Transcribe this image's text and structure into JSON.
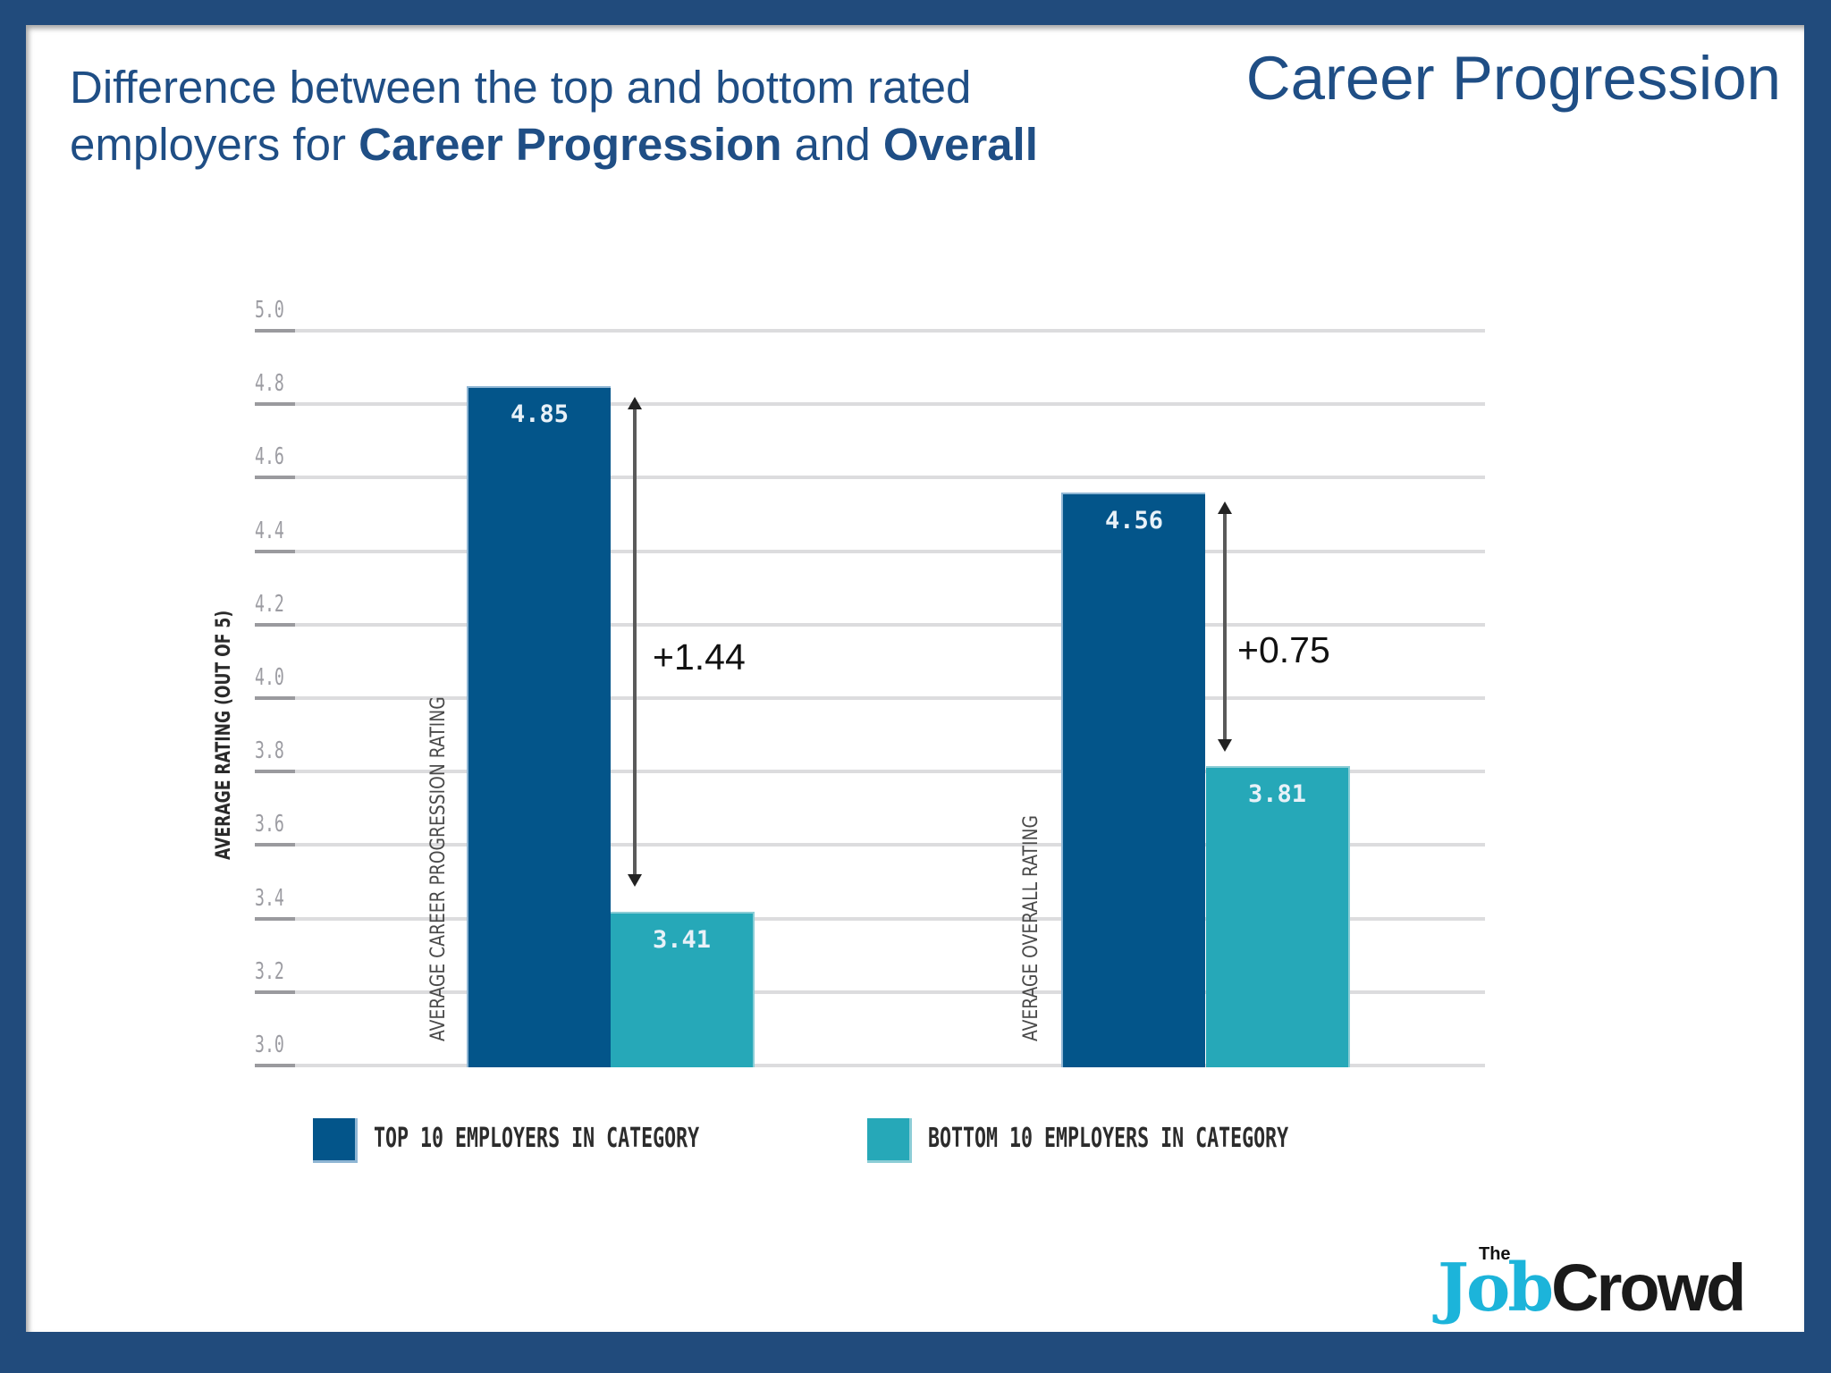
{
  "slide": {
    "corner_title": "Career Progression",
    "subtitle_line1": "Difference between the top and bottom rated",
    "subtitle_line2_prefix": "employers for ",
    "subtitle_bold1": "Career Progression",
    "subtitle_mid": " and ",
    "subtitle_bold2": "Overall"
  },
  "colors": {
    "border": "#214b7c",
    "title": "#1f4e85",
    "top_series": "#03558a",
    "bottom_series": "#26a8b8"
  },
  "chart_data": {
    "type": "bar",
    "title": "Difference between the top and bottom rated employers for Career Progression and Overall",
    "ylabel": "AVERAGE RATING (OUT OF 5)",
    "xlabel": "",
    "ylim": [
      3.0,
      5.0
    ],
    "yticks": [
      "5.0",
      "4.8",
      "4.6",
      "4.4",
      "4.2",
      "4.0",
      "3.8",
      "3.6",
      "3.4",
      "3.2",
      "3.0"
    ],
    "grid": true,
    "legend_position": "bottom",
    "categories": [
      "AVERAGE CAREER PROGRESSION RATING",
      "AVERAGE OVERALL RATING"
    ],
    "series": [
      {
        "name": "TOP 10 EMPLOYERS IN CATEGORY",
        "values": [
          4.85,
          4.56
        ],
        "labels": [
          "4.85",
          "4.56"
        ]
      },
      {
        "name": "BOTTOM 10 EMPLOYERS IN CATEGORY",
        "values": [
          3.41,
          3.81
        ],
        "labels": [
          "3.41",
          "3.81"
        ]
      }
    ],
    "annotations": [
      "+1.44",
      "+0.75"
    ]
  },
  "logo": {
    "the": "The",
    "job": "Job",
    "crowd": "Crowd"
  }
}
